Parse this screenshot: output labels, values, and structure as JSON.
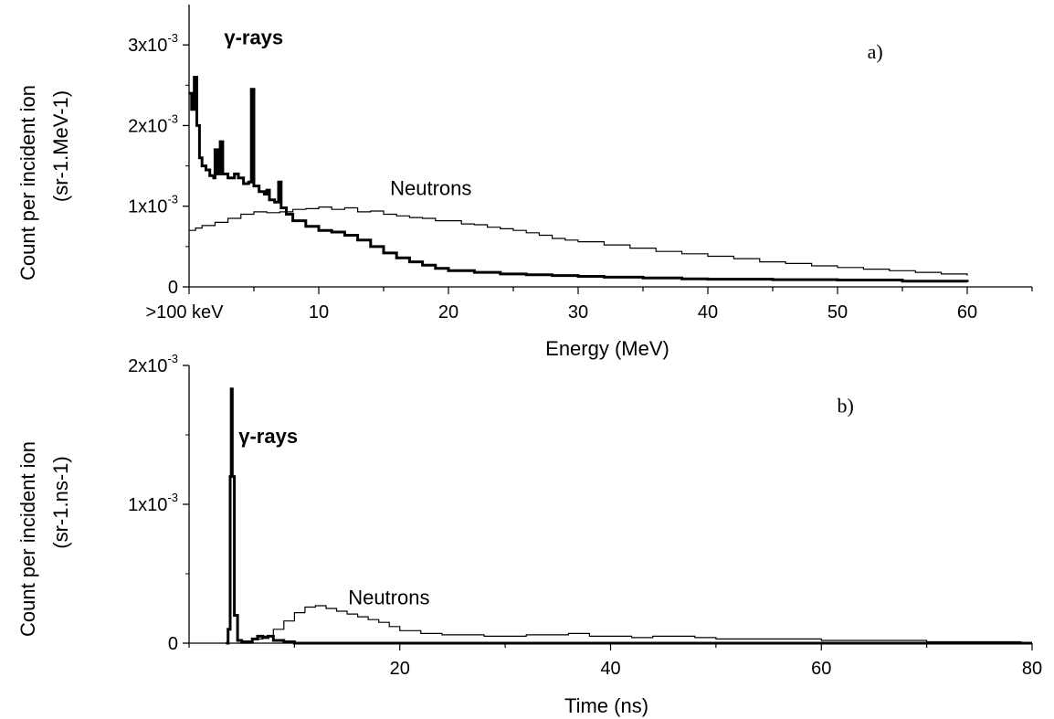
{
  "chart_data": [
    {
      "type": "line",
      "panel_label": "a)",
      "xlabel": "Energy (MeV)",
      "ylabel_line1": "Count per incident ion",
      "ylabel_line2": "(sr-1.MeV-1)",
      "xlim": [
        0,
        65
      ],
      "ylim": [
        0,
        0.0035
      ],
      "x_ticks": [
        {
          "value": 0,
          "label": ">100 keV"
        },
        {
          "value": 10,
          "label": "10"
        },
        {
          "value": 20,
          "label": "20"
        },
        {
          "value": 30,
          "label": "30"
        },
        {
          "value": 40,
          "label": "40"
        },
        {
          "value": 50,
          "label": "50"
        },
        {
          "value": 60,
          "label": "60"
        }
      ],
      "y_ticks": [
        {
          "value": 0,
          "label": "0",
          "mant": "0",
          "exp": ""
        },
        {
          "value": 0.001,
          "label": "1x10-3",
          "mant": "1x10",
          "exp": "-3"
        },
        {
          "value": 0.002,
          "label": "2x10-3",
          "mant": "2x10",
          "exp": "-3"
        },
        {
          "value": 0.003,
          "label": "3x10-3",
          "mant": "3x10",
          "exp": "-3"
        }
      ],
      "annotations": [
        {
          "text": "γ-rays",
          "x": 2.7,
          "y": 0.00301,
          "bold": true,
          "family": "sans"
        },
        {
          "text": "Neutrons",
          "x": 15.5,
          "y": 0.00114,
          "bold": false,
          "family": "sans"
        },
        {
          "text": "a)",
          "x": 52.3,
          "y": 0.00283,
          "bold": false,
          "family": "serif"
        }
      ],
      "series": [
        {
          "label": "γ-rays",
          "stroke_width": 3,
          "points": [
            [
              0,
              0.0024
            ],
            [
              0.2,
              0.0022
            ],
            [
              0.4,
              0.0026
            ],
            [
              0.6,
              0.002
            ],
            [
              0.8,
              0.0016
            ],
            [
              1.0,
              0.0015
            ],
            [
              1.3,
              0.00145
            ],
            [
              1.6,
              0.00138
            ],
            [
              1.9,
              0.00135
            ],
            [
              2.0,
              0.0017
            ],
            [
              2.2,
              0.0014
            ],
            [
              2.4,
              0.0018
            ],
            [
              2.6,
              0.0014
            ],
            [
              3.0,
              0.00135
            ],
            [
              3.5,
              0.0014
            ],
            [
              3.8,
              0.00135
            ],
            [
              4.2,
              0.00128
            ],
            [
              4.6,
              0.0013
            ],
            [
              4.8,
              0.00245
            ],
            [
              5.0,
              0.00125
            ],
            [
              5.4,
              0.00118
            ],
            [
              5.8,
              0.00115
            ],
            [
              6.0,
              0.0012
            ],
            [
              6.2,
              0.00108
            ],
            [
              6.6,
              0.00105
            ],
            [
              6.9,
              0.0013
            ],
            [
              7.1,
              0.00098
            ],
            [
              7.5,
              0.0009
            ],
            [
              8,
              0.00082
            ],
            [
              9,
              0.00075
            ],
            [
              10,
              0.0007
            ],
            [
              11,
              0.00068
            ],
            [
              12,
              0.00064
            ],
            [
              13,
              0.00058
            ],
            [
              14,
              0.0005
            ],
            [
              15,
              0.00042
            ],
            [
              16,
              0.00036
            ],
            [
              17,
              0.00031
            ],
            [
              18,
              0.00027
            ],
            [
              19,
              0.00023
            ],
            [
              20,
              0.0002
            ],
            [
              22,
              0.00018
            ],
            [
              24,
              0.00016
            ],
            [
              26,
              0.00015
            ],
            [
              28,
              0.00014
            ],
            [
              30,
              0.00013
            ],
            [
              32,
              0.00012
            ],
            [
              35,
              0.00011
            ],
            [
              38,
              0.0001
            ],
            [
              40,
              9.5e-05
            ],
            [
              45,
              9e-05
            ],
            [
              50,
              8.5e-05
            ],
            [
              55,
              7e-05
            ],
            [
              60,
              6e-05
            ]
          ]
        },
        {
          "label": "Neutrons",
          "stroke_width": 1.2,
          "points": [
            [
              0,
              0.0007
            ],
            [
              0.5,
              0.00073
            ],
            [
              1,
              0.00076
            ],
            [
              2,
              0.0008
            ],
            [
              3,
              0.00085
            ],
            [
              4,
              0.0009
            ],
            [
              5,
              0.00093
            ],
            [
              6,
              0.00092
            ],
            [
              7,
              0.00093
            ],
            [
              8,
              0.00096
            ],
            [
              9,
              0.00097
            ],
            [
              10,
              0.00099
            ],
            [
              11,
              0.00096
            ],
            [
              12,
              0.00098
            ],
            [
              13,
              0.00093
            ],
            [
              14,
              0.00094
            ],
            [
              15,
              0.0009
            ],
            [
              16,
              0.00088
            ],
            [
              17,
              0.00086
            ],
            [
              18,
              0.00085
            ],
            [
              19,
              0.00082
            ],
            [
              20,
              0.00082
            ],
            [
              21,
              0.00078
            ],
            [
              22,
              0.00077
            ],
            [
              23,
              0.00074
            ],
            [
              24,
              0.00072
            ],
            [
              25,
              0.0007
            ],
            [
              26,
              0.00067
            ],
            [
              27,
              0.00064
            ],
            [
              28,
              0.0006
            ],
            [
              29,
              0.00058
            ],
            [
              30,
              0.00056
            ],
            [
              32,
              0.00052
            ],
            [
              34,
              0.00048
            ],
            [
              36,
              0.00044
            ],
            [
              38,
              0.00041
            ],
            [
              40,
              0.00038
            ],
            [
              42,
              0.00035
            ],
            [
              44,
              0.00031
            ],
            [
              46,
              0.00029
            ],
            [
              48,
              0.00026
            ],
            [
              50,
              0.00024
            ],
            [
              52,
              0.00022
            ],
            [
              54,
              0.0002
            ],
            [
              56,
              0.00018
            ],
            [
              58,
              0.00016
            ],
            [
              60,
              0.00014
            ]
          ]
        }
      ]
    },
    {
      "type": "line",
      "panel_label": "b)",
      "xlabel": "Time (ns)",
      "ylabel_line1": "Count per incident ion",
      "ylabel_line2": "(sr-1.ns-1)",
      "xlim": [
        0,
        80
      ],
      "ylim": [
        0,
        0.002
      ],
      "x_ticks": [
        {
          "value": 20,
          "label": "20"
        },
        {
          "value": 40,
          "label": "40"
        },
        {
          "value": 60,
          "label": "60"
        },
        {
          "value": 80,
          "label": "80"
        }
      ],
      "y_ticks": [
        {
          "value": 0,
          "label": "0",
          "mant": "0",
          "exp": ""
        },
        {
          "value": 0.001,
          "label": "1x10-3",
          "mant": "1x10",
          "exp": "-3"
        },
        {
          "value": 0.002,
          "label": "2x10-3",
          "mant": "2x10",
          "exp": "-3"
        }
      ],
      "annotations": [
        {
          "text": "γ-rays",
          "x": 4.7,
          "y": 0.00144,
          "bold": true,
          "family": "sans"
        },
        {
          "text": "Neutrons",
          "x": 15.1,
          "y": 0.00028,
          "bold": false,
          "family": "sans"
        },
        {
          "text": "b)",
          "x": 61.5,
          "y": 0.00166,
          "bold": false,
          "family": "serif"
        }
      ],
      "series": [
        {
          "label": "γ-rays",
          "stroke_width": 3,
          "points": [
            [
              3.5,
              0
            ],
            [
              3.7,
              0.0001
            ],
            [
              3.9,
              0.0012
            ],
            [
              4.0,
              0.00183
            ],
            [
              4.1,
              0.0012
            ],
            [
              4.3,
              0.0002
            ],
            [
              4.6,
              2e-05
            ],
            [
              5,
              1e-05
            ],
            [
              6,
              3e-05
            ],
            [
              6.5,
              5e-05
            ],
            [
              7,
              4e-05
            ],
            [
              7.5,
              5e-05
            ],
            [
              8,
              2e-05
            ],
            [
              9,
              1e-05
            ],
            [
              10,
              0
            ],
            [
              20,
              0
            ],
            [
              40,
              0
            ],
            [
              60,
              0
            ],
            [
              80,
              0
            ]
          ]
        },
        {
          "label": "Neutrons",
          "stroke_width": 1.2,
          "points": [
            [
              4.8,
              0
            ],
            [
              6,
              3e-05
            ],
            [
              7,
              5e-05
            ],
            [
              8,
              0.0001
            ],
            [
              9,
              0.00016
            ],
            [
              10,
              0.00022
            ],
            [
              11,
              0.00026
            ],
            [
              12,
              0.00027
            ],
            [
              13,
              0.00025
            ],
            [
              14,
              0.00023
            ],
            [
              15,
              0.00021
            ],
            [
              16,
              0.00019
            ],
            [
              17,
              0.00017
            ],
            [
              18,
              0.00015
            ],
            [
              19,
              0.00012
            ],
            [
              20,
              9e-05
            ],
            [
              22,
              7e-05
            ],
            [
              24,
              6e-05
            ],
            [
              26,
              6e-05
            ],
            [
              28,
              5e-05
            ],
            [
              30,
              5e-05
            ],
            [
              32,
              6e-05
            ],
            [
              34,
              6e-05
            ],
            [
              36,
              7e-05
            ],
            [
              38,
              5e-05
            ],
            [
              40,
              5e-05
            ],
            [
              42,
              4e-05
            ],
            [
              44,
              5e-05
            ],
            [
              46,
              5e-05
            ],
            [
              48,
              4e-05
            ],
            [
              50,
              3e-05
            ],
            [
              55,
              3e-05
            ],
            [
              60,
              2e-05
            ],
            [
              65,
              2e-05
            ],
            [
              70,
              1e-05
            ],
            [
              75,
              1e-05
            ],
            [
              79,
              1e-05
            ]
          ]
        }
      ]
    }
  ]
}
